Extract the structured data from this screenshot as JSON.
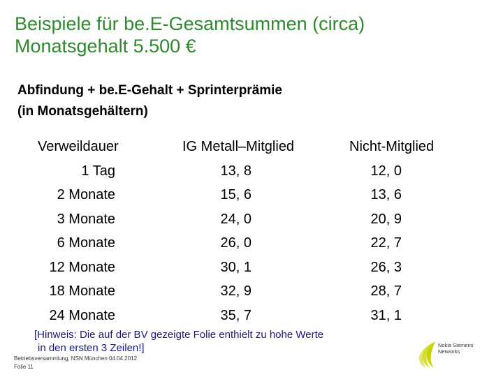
{
  "title": {
    "line1": "Beispiele für be.E-Gesamtsummen (circa)",
    "line2": "Monatsgehalt 5.500 €"
  },
  "subtitle": {
    "line1": "Abfindung + be.E-Gehalt + Sprinterprämie",
    "line2": "(in Monatsgehältern)"
  },
  "table": {
    "headers": [
      "Verweildauer",
      "IG Metall–Mitglied",
      "Nicht-Mitglied"
    ],
    "rows": [
      [
        "1 Tag",
        "13, 8",
        "12, 0"
      ],
      [
        "2 Monate",
        "15, 6",
        "13, 6"
      ],
      [
        "3 Monate",
        "24, 0",
        "20, 9"
      ],
      [
        "6 Monate",
        "26, 0",
        "22, 7"
      ],
      [
        "12 Monate",
        "30, 1",
        "26, 3"
      ],
      [
        "18 Monate",
        "32, 9",
        "28, 7"
      ],
      [
        "24 Monate",
        "35, 7",
        "31, 1"
      ]
    ]
  },
  "note": {
    "line1": "[Hinweis: Die auf der BV gezeigte Folie enthielt zu hohe Werte",
    "line2": "in den ersten 3 Zeilen!]"
  },
  "footer": {
    "line1": "Betriebsversammlung, NSN München 04.04.2012",
    "line2": "Folie 11"
  },
  "logo": {
    "line1": "Nokia Siemens",
    "line2": "Networks",
    "icon": "nsn-logo-icon",
    "color": "#c8d400"
  },
  "colors": {
    "title": "#2d8a2d",
    "note": "#1a1a80"
  }
}
